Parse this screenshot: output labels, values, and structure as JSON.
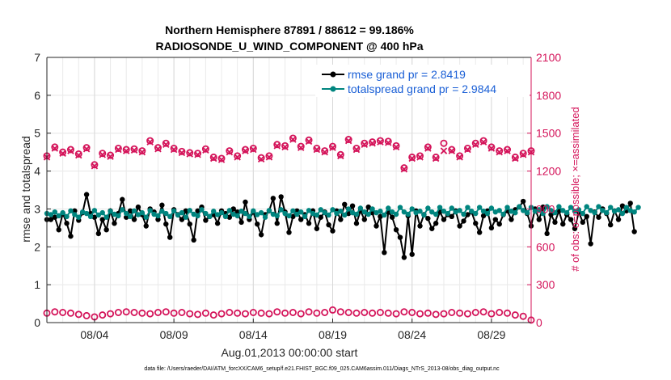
{
  "chart_data": {
    "type": "line",
    "title": "Northern Hemisphere 87891 / 88612 = 99.186%",
    "subtitle": "RADIOSONDE_U_WIND_COMPONENT @ 400 hPa",
    "xlabel": "Aug.01,2013 00:00:00 start",
    "ylabel": "rmse and totalspread",
    "ylabel_right": "# of obs: o=possible; ×=assimilated",
    "ylim": [
      0,
      7
    ],
    "ylim_right": [
      0,
      2100
    ],
    "yticks": [
      "0",
      "1",
      "2",
      "3",
      "4",
      "5",
      "6",
      "7"
    ],
    "yticks_right": [
      "0",
      "300",
      "600",
      "900",
      "1200",
      "1500",
      "1800",
      "2100"
    ],
    "xlim": [
      1,
      31.5
    ],
    "xticks": [
      {
        "x": 4,
        "label": "08/04"
      },
      {
        "x": 9,
        "label": "08/09"
      },
      {
        "x": 14,
        "label": "08/14"
      },
      {
        "x": 19,
        "label": "08/19"
      },
      {
        "x": 24,
        "label": "08/24"
      },
      {
        "x": 29,
        "label": "08/29"
      }
    ],
    "grid": true,
    "legend_position": "top-right",
    "footnote": "data file: /Users/raeder/DAI/ATM_forcXX/CAM6_setup/f.e21.FHIST_BGC.f09_025.CAM6assim.011/Diags_NTrS_2013-08/obs_diag_output.nc",
    "series": [
      {
        "name": "rmse grand pr = 2.8419",
        "axis": "left",
        "color": "#000000",
        "marker": "circle",
        "x0": 1.0,
        "dx": 0.25,
        "values": [
          2.72,
          2.72,
          2.78,
          2.45,
          2.88,
          2.62,
          2.28,
          2.95,
          2.7,
          2.9,
          3.38,
          2.88,
          2.78,
          2.35,
          2.72,
          2.45,
          2.95,
          2.62,
          2.88,
          3.25,
          2.78,
          2.95,
          2.72,
          3.05,
          2.85,
          2.55,
          3.0,
          2.92,
          2.72,
          3.1,
          2.6,
          2.25,
          2.98,
          2.85,
          2.72,
          2.95,
          2.6,
          2.18,
          2.95,
          3.05,
          2.7,
          2.8,
          2.85,
          2.62,
          2.95,
          2.88,
          2.78,
          3.0,
          2.92,
          2.65,
          3.18,
          2.72,
          2.92,
          2.6,
          2.32,
          2.85,
          2.95,
          3.28,
          2.62,
          3.32,
          2.92,
          2.38,
          2.8,
          2.95,
          2.72,
          2.85,
          2.62,
          2.95,
          2.48,
          2.78,
          2.92,
          2.58,
          2.42,
          2.95,
          2.72,
          3.12,
          2.88,
          3.08,
          2.62,
          2.95,
          2.72,
          3.05,
          2.9,
          2.55,
          2.8,
          1.85,
          2.92,
          2.78,
          2.45,
          2.25,
          1.72,
          2.82,
          1.8,
          2.95,
          2.55,
          2.85,
          2.75,
          2.48,
          2.62,
          2.92,
          2.72,
          2.85,
          2.8,
          2.95,
          2.55,
          2.68,
          2.85,
          2.92,
          2.62,
          2.38,
          2.82,
          2.95,
          2.5,
          2.72,
          2.6,
          2.85,
          2.95,
          2.72,
          2.98,
          3.05,
          3.2,
          2.88,
          2.55,
          3.0,
          2.72,
          3.05,
          2.35,
          2.85,
          2.65,
          2.95,
          2.6,
          2.85,
          2.72,
          2.48,
          2.92,
          2.65,
          2.8,
          2.08,
          2.92,
          2.78,
          3.0,
          2.88,
          2.58,
          2.95,
          2.72,
          3.08,
          2.95,
          3.15,
          2.4
        ]
      },
      {
        "name": "totalspread grand pr = 2.9844",
        "axis": "left",
        "color": "#00857f",
        "marker": "circle",
        "x0": 1.0,
        "dx": 0.25,
        "values": [
          2.88,
          2.85,
          2.92,
          2.82,
          2.9,
          2.8,
          2.95,
          2.85,
          2.78,
          2.92,
          2.88,
          2.8,
          2.96,
          2.84,
          2.9,
          2.78,
          2.94,
          2.86,
          2.82,
          2.98,
          2.88,
          2.8,
          2.95,
          2.85,
          2.9,
          2.78,
          2.96,
          2.86,
          2.82,
          2.94,
          2.88,
          2.8,
          2.95,
          2.84,
          2.9,
          2.78,
          2.96,
          2.86,
          2.82,
          2.98,
          2.88,
          2.8,
          2.94,
          2.85,
          2.9,
          2.8,
          2.96,
          2.86,
          2.82,
          2.94,
          2.88,
          2.8,
          2.95,
          2.85,
          2.9,
          2.78,
          2.96,
          2.86,
          2.82,
          2.98,
          2.88,
          2.82,
          2.95,
          2.86,
          2.92,
          2.8,
          2.96,
          2.88,
          2.84,
          2.98,
          2.9,
          2.84,
          2.98,
          2.88,
          2.94,
          2.84,
          3.0,
          2.9,
          2.86,
          3.02,
          2.92,
          2.86,
          3.0,
          2.9,
          2.94,
          2.84,
          3.02,
          2.92,
          2.86,
          3.04,
          2.92,
          2.86,
          3.0,
          2.9,
          2.94,
          2.84,
          3.02,
          2.92,
          2.86,
          3.04,
          2.94,
          2.88,
          3.02,
          2.92,
          2.96,
          2.86,
          3.04,
          2.94,
          2.88,
          3.04,
          2.94,
          2.88,
          3.02,
          2.92,
          2.96,
          2.86,
          3.04,
          2.94,
          2.9,
          3.06,
          2.96,
          2.9,
          3.04,
          2.94,
          2.98,
          2.88,
          3.06,
          2.96,
          2.9,
          3.06,
          2.96,
          2.9,
          3.04,
          2.94,
          2.98,
          2.88,
          3.06,
          2.96,
          2.9,
          3.06,
          2.96,
          2.9,
          3.04,
          2.94,
          2.98,
          2.88,
          3.04,
          2.96,
          2.92,
          3.04
        ]
      },
      {
        "name": "obs possible (o)",
        "axis": "right",
        "color": "#d4145a",
        "marker": "o",
        "x": [
          1.0,
          1.5,
          2.0,
          2.5,
          3.0,
          3.5,
          4.0,
          4.5,
          5.0,
          5.5,
          6.0,
          6.5,
          7.0,
          7.5,
          8.0,
          8.5,
          9.0,
          9.5,
          10.0,
          10.5,
          11.0,
          11.5,
          12.0,
          12.5,
          13.0,
          13.5,
          14.0,
          14.5,
          15.0,
          15.5,
          16.0,
          16.5,
          17.0,
          17.5,
          18.0,
          18.5,
          19.0,
          19.5,
          20.0,
          20.5,
          21.0,
          21.5,
          22.0,
          22.5,
          23.0,
          23.5,
          24.0,
          24.5,
          25.0,
          25.5,
          26.0,
          26.5,
          27.0,
          27.5,
          28.0,
          28.5,
          29.0,
          29.5,
          30.0,
          30.5,
          31.0,
          31.5
        ],
        "values": [
          1320,
          1390,
          1350,
          1370,
          1335,
          1385,
          1250,
          1340,
          1325,
          1380,
          1370,
          1375,
          1360,
          1440,
          1385,
          1420,
          1380,
          1355,
          1345,
          1340,
          1375,
          1310,
          1300,
          1360,
          1320,
          1370,
          1380,
          1305,
          1320,
          1410,
          1400,
          1460,
          1395,
          1445,
          1380,
          1360,
          1395,
          1330,
          1450,
          1380,
          1420,
          1430,
          1440,
          1435,
          1400,
          1225,
          1310,
          1320,
          1390,
          1310,
          1420,
          1370,
          1320,
          1380,
          1420,
          1440,
          1390,
          1360,
          1370,
          1310,
          1340,
          1360
        ]
      },
      {
        "name": "obs assimilated (×)",
        "axis": "right",
        "color": "#d4145a",
        "marker": "x",
        "x": [
          1.0,
          1.5,
          2.0,
          2.5,
          3.0,
          3.5,
          4.0,
          4.5,
          5.0,
          5.5,
          6.0,
          6.5,
          7.0,
          7.5,
          8.0,
          8.5,
          9.0,
          9.5,
          10.0,
          10.5,
          11.0,
          11.5,
          12.0,
          12.5,
          13.0,
          13.5,
          14.0,
          14.5,
          15.0,
          15.5,
          16.0,
          16.5,
          17.0,
          17.5,
          18.0,
          18.5,
          19.0,
          19.5,
          20.0,
          20.5,
          21.0,
          21.5,
          22.0,
          22.5,
          23.0,
          23.5,
          24.0,
          24.5,
          25.0,
          25.5,
          26.0,
          26.5,
          27.0,
          27.5,
          28.0,
          28.5,
          29.0,
          29.5,
          30.0,
          30.5,
          31.0,
          31.5
        ],
        "values": [
          1310,
          1380,
          1340,
          1360,
          1325,
          1375,
          1240,
          1330,
          1315,
          1370,
          1360,
          1365,
          1350,
          1430,
          1375,
          1410,
          1370,
          1345,
          1335,
          1330,
          1365,
          1300,
          1290,
          1350,
          1310,
          1360,
          1370,
          1295,
          1310,
          1400,
          1390,
          1450,
          1385,
          1435,
          1370,
          1350,
          1385,
          1320,
          1440,
          1370,
          1410,
          1420,
          1430,
          1425,
          1390,
          1215,
          1300,
          1310,
          1380,
          1300,
          1360,
          1360,
          1310,
          1370,
          1410,
          1430,
          1380,
          1350,
          1360,
          1300,
          1330,
          1350
        ]
      },
      {
        "name": "obs possible low (o)",
        "axis": "right",
        "color": "#d4145a",
        "marker": "o",
        "x": [
          1.0,
          1.5,
          2.0,
          2.5,
          3.0,
          3.5,
          4.0,
          4.5,
          5.0,
          5.5,
          6.0,
          6.5,
          7.0,
          7.5,
          8.0,
          8.5,
          9.0,
          9.5,
          10.0,
          10.5,
          11.0,
          11.5,
          12.0,
          12.5,
          13.0,
          13.5,
          14.0,
          14.5,
          15.0,
          15.5,
          16.0,
          16.5,
          17.0,
          17.5,
          18.0,
          18.5,
          19.0,
          19.5,
          20.0,
          20.5,
          21.0,
          21.5,
          22.0,
          22.5,
          23.0,
          23.5,
          24.0,
          24.5,
          25.0,
          25.5,
          26.0,
          26.5,
          27.0,
          27.5,
          28.0,
          28.5,
          29.0,
          29.5,
          30.0,
          30.5,
          31.0,
          31.5
        ],
        "values": [
          75,
          85,
          80,
          75,
          65,
          55,
          45,
          60,
          70,
          80,
          85,
          80,
          75,
          70,
          80,
          85,
          75,
          80,
          70,
          65,
          75,
          60,
          70,
          80,
          75,
          70,
          80,
          75,
          70,
          85,
          75,
          80,
          70,
          85,
          75,
          80,
          100,
          85,
          80,
          75,
          80,
          75,
          80,
          75,
          70,
          85,
          80,
          70,
          75,
          65,
          70,
          80,
          75,
          70,
          80,
          85,
          70,
          80,
          75,
          60,
          50,
          20
        ]
      }
    ]
  }
}
